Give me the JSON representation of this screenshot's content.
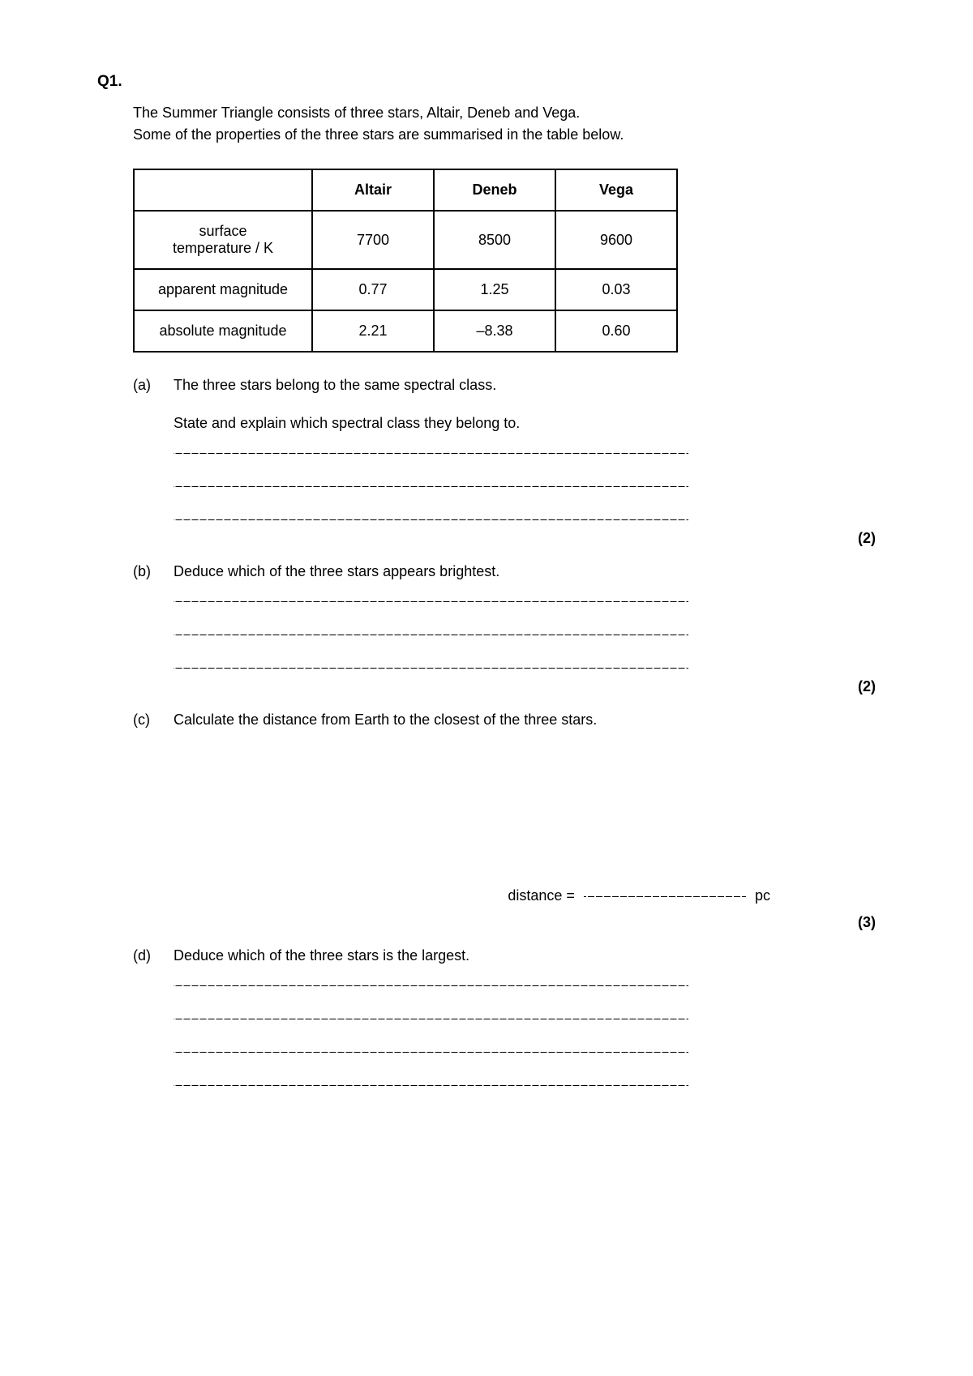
{
  "question_number": "Q1.",
  "intro_line1": "The Summer Triangle consists of three stars, Altair, Deneb and Vega.",
  "intro_line2": "Some of the properties of the three stars are summarised in the table below.",
  "table": {
    "columns": [
      "",
      "Altair",
      "Deneb",
      "Vega"
    ],
    "rows": [
      {
        "label_line1": "surface",
        "label_line2": "temperature / K",
        "cells": [
          "7700",
          "8500",
          "9600"
        ]
      },
      {
        "label_line1": "apparent magnitude",
        "label_line2": "",
        "cells": [
          "0.77",
          "1.25",
          "0.03"
        ]
      },
      {
        "label_line1": "absolute magnitude",
        "label_line2": "",
        "cells": [
          "2.21",
          "–8.38",
          "0.60"
        ]
      }
    ]
  },
  "parts": {
    "a": {
      "label": "(a)",
      "line1": "The three stars belong to the same spectral class.",
      "line2": "State and explain which spectral class they belong to.",
      "marks": "(2)"
    },
    "b": {
      "label": "(b)",
      "text": "Deduce which of the three stars appears brightest.",
      "marks": "(2)"
    },
    "c": {
      "label": "(c)",
      "text": "Calculate the distance from Earth to the closest of the three stars.",
      "answer_label": "distance =",
      "answer_unit": "pc",
      "marks": "(3)"
    },
    "d": {
      "label": "(d)",
      "text": "Deduce which of the three stars is the largest."
    }
  }
}
